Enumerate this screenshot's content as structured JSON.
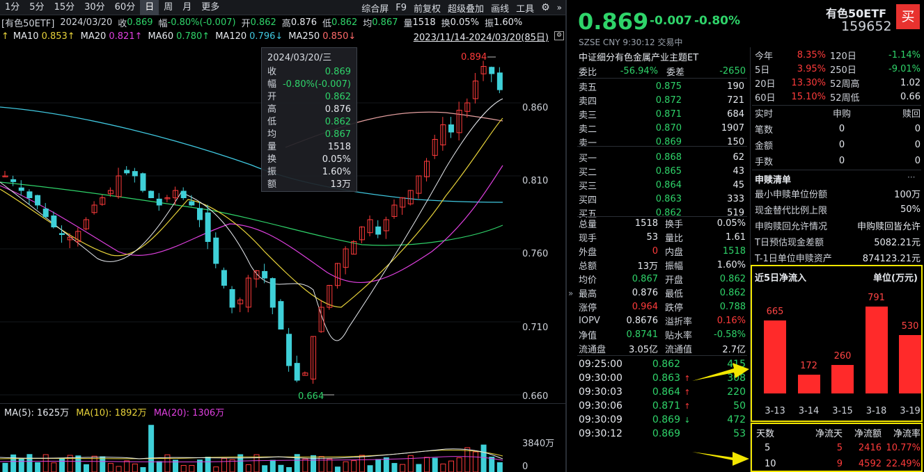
{
  "toolbar": {
    "periods": [
      "1分",
      "5分",
      "15分",
      "30分",
      "60分",
      "日",
      "周",
      "月",
      "更多"
    ],
    "active": "日",
    "right": [
      "综合屏",
      "F9",
      "前复权",
      "超级叠加",
      "画线",
      "工具"
    ]
  },
  "info_line": {
    "name": "[有色50ETF]",
    "date": "2024/03/20",
    "close_label": "收",
    "close": "0.869",
    "chg_label": "幅",
    "chg": "-0.80%(-0.007)",
    "open_label": "开",
    "open": "0.862",
    "high_label": "高",
    "high": "0.876",
    "low_label": "低",
    "low": "0.862",
    "avg_label": "均",
    "avg": "0.867",
    "vol_label": "量",
    "vol": "1518",
    "turn_label": "换",
    "turn": "0.05%",
    "amp_label": "振",
    "amp": "1.60%"
  },
  "ma_line": {
    "ma10_label": "MA10",
    "ma10": "0.853↑",
    "ma20_label": "MA20",
    "ma20": "0.821↑",
    "ma60_label": "MA60",
    "ma60": "0.780↑",
    "ma120_label": "MA120",
    "ma120": "0.796↓",
    "ma250_label": "MA250",
    "ma250": "0.850↓",
    "range": "2023/11/14-2024/03/20(85日)"
  },
  "tooltip": {
    "date": "2024/03/20/三",
    "rows": [
      {
        "k": "收",
        "v": "0.869"
      },
      {
        "k": "幅",
        "v": "-0.80%(-0.007)"
      },
      {
        "k": "开",
        "v": "0.862"
      },
      {
        "k": "高",
        "v": "0.876"
      },
      {
        "k": "低",
        "v": "0.862"
      },
      {
        "k": "均",
        "v": "0.867"
      },
      {
        "k": "量",
        "v": "1518"
      },
      {
        "k": "换",
        "v": "0.05%"
      },
      {
        "k": "振",
        "v": "1.60%"
      },
      {
        "k": "额",
        "v": "13万"
      }
    ]
  },
  "price_axis": [
    "0.860",
    "0.810",
    "0.760",
    "0.710",
    "0.660"
  ],
  "marks": {
    "max": "0.894",
    "min": "0.664"
  },
  "vol_line": {
    "ma5": "MA(5): 1625万",
    "ma10": "MA(10): 1892万",
    "ma20": "MA(20): 1306万"
  },
  "vol_axis": [
    "3840万",
    "0"
  ],
  "quote": {
    "price": "0.869",
    "chg": "-0.007",
    "pct": "-0.80%",
    "name": "有色50ETF",
    "code": "159652",
    "buy_btn": "买",
    "exchange_line": "SZSE  CNY  9:30:12  交易中",
    "full_name": "中证细分有色金属产业主题ET"
  },
  "webi": {
    "k1": "委比",
    "v1": "-56.94%",
    "k2": "委差",
    "v2": "-2650"
  },
  "order_book": [
    {
      "label": "卖五",
      "price": "0.875",
      "vol": "190"
    },
    {
      "label": "卖四",
      "price": "0.872",
      "vol": "721"
    },
    {
      "label": "卖三",
      "price": "0.871",
      "vol": "684"
    },
    {
      "label": "卖二",
      "price": "0.870",
      "vol": "1907"
    },
    {
      "label": "卖一",
      "price": "0.869",
      "vol": "150"
    },
    {
      "label": "买一",
      "price": "0.868",
      "vol": "62"
    },
    {
      "label": "买二",
      "price": "0.865",
      "vol": "43"
    },
    {
      "label": "买三",
      "price": "0.864",
      "vol": "45"
    },
    {
      "label": "买四",
      "price": "0.863",
      "vol": "333"
    },
    {
      "label": "买五",
      "price": "0.862",
      "vol": "519"
    }
  ],
  "stats": [
    {
      "k1": "总量",
      "v1": "1518",
      "k2": "换手",
      "v2": "0.05%"
    },
    {
      "k1": "现手",
      "v1": "53",
      "k2": "量比",
      "v2": "1.61"
    },
    {
      "k1": "外盘",
      "v1": "0",
      "k2": "内盘",
      "v2": "1518"
    },
    {
      "k1": "总额",
      "v1": "13万",
      "k2": "振幅",
      "v2": "1.60%"
    },
    {
      "k1": "均价",
      "v1": "0.867",
      "k2": "开盘",
      "v2": "0.862"
    },
    {
      "k1": "最高",
      "v1": "0.876",
      "k2": "最低",
      "v2": "0.862"
    },
    {
      "k1": "涨停",
      "v1": "0.964",
      "k2": "跌停",
      "v2": "0.788"
    },
    {
      "k1": "IOPV",
      "v1": "0.8676",
      "k2": "溢折率",
      "v2": "0.16%"
    },
    {
      "k1": "净值",
      "v1": "0.8741",
      "k2": "贴水率",
      "v2": "-0.58%"
    },
    {
      "k1": "流通盘",
      "v1": "3.05亿",
      "k2": "流通值",
      "v2": "2.7亿"
    }
  ],
  "ticks": [
    {
      "t": "09:25:00",
      "p": "0.862",
      "v": "415",
      "d": ""
    },
    {
      "t": "09:30:00",
      "p": "0.863",
      "v": "308",
      "d": "up"
    },
    {
      "t": "09:30:03",
      "p": "0.864",
      "v": "220",
      "d": "up"
    },
    {
      "t": "09:30:06",
      "p": "0.871",
      "v": "50",
      "d": "up"
    },
    {
      "t": "09:30:09",
      "p": "0.869",
      "v": "472",
      "d": "down"
    },
    {
      "t": "09:30:12",
      "p": "0.869",
      "v": "53",
      "d": ""
    }
  ],
  "perf": [
    {
      "k1": "今年",
      "v1": "8.35%",
      "k2": "120日",
      "v2": "-1.14%"
    },
    {
      "k1": "5日",
      "v1": "3.95%",
      "k2": "250日",
      "v2": "-9.01%"
    },
    {
      "k1": "20日",
      "v1": "13.30%",
      "k2": "52周高",
      "v2": "1.02"
    },
    {
      "k1": "60日",
      "v1": "15.10%",
      "k2": "52周低",
      "v2": "0.66"
    }
  ],
  "redeem_head": {
    "a": "实时",
    "b": "申购",
    "c": "赎回"
  },
  "redeem_rows": [
    {
      "k": "笔数",
      "a": "0",
      "b": "0"
    },
    {
      "k": "金额",
      "a": "0",
      "b": "0"
    },
    {
      "k": "手数",
      "a": "0",
      "b": "0"
    }
  ],
  "list_title": "申赎清单",
  "list_more": "···",
  "list_rows": [
    {
      "k": "最小申赎单位份额",
      "v": "100万"
    },
    {
      "k": "现金替代比例上限",
      "v": "50%"
    },
    {
      "k": "申购赎回允许情况",
      "v": "申购赎回皆允许"
    },
    {
      "k": "T日预估现金差额",
      "v": "5082.21元"
    },
    {
      "k": "T-1日单位申赎资产",
      "v": "874123.21元"
    }
  ],
  "flow_title": "近5日净流入",
  "flow_unit": "单位(万元)",
  "chart_data": {
    "type": "bar",
    "title": "近5日净流入",
    "ylabel": "单位(万元)",
    "categories": [
      "3-13",
      "3-14",
      "3-15",
      "3-18",
      "3-19"
    ],
    "values": [
      665,
      172,
      260,
      791,
      530
    ],
    "color": "#ff2a2a"
  },
  "flow_table": {
    "headers": [
      "天数",
      "净流天",
      "净流额",
      "净流率"
    ],
    "rows": [
      [
        "5",
        "5",
        "2416",
        "10.77%"
      ],
      [
        "10",
        "9",
        "4592",
        "22.49%"
      ]
    ]
  },
  "colors": {
    "up": "#ff3b3b",
    "down": "#2fd46a",
    "highlight": "#f2e600",
    "candle_down": "#3fd0d8"
  }
}
